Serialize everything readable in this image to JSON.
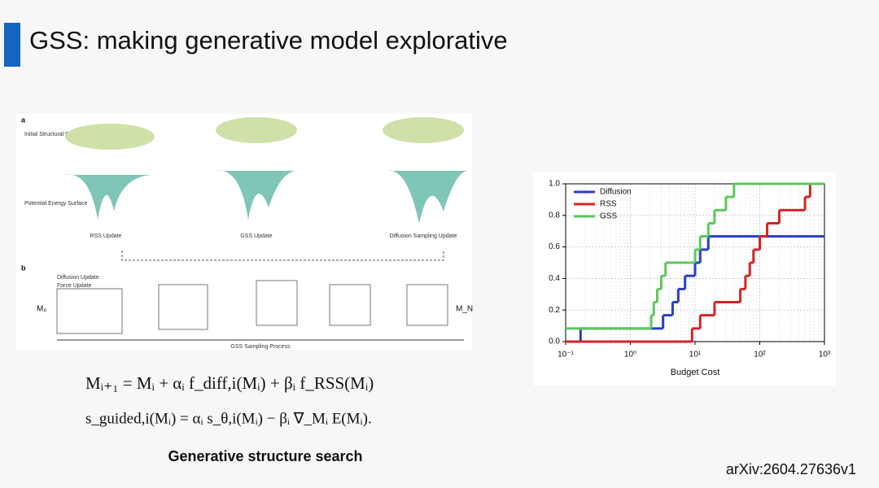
{
  "slide": {
    "title": "GSS: making generative model explorative",
    "caption": "Generative structure search",
    "reference": "arXiv:2604.27636v1",
    "equations": [
      "Mᵢ₊₁ = Mᵢ + αᵢ f_diff,i(Mᵢ) + βᵢ f_RSS(Mᵢ)",
      "s_guided,i(Mᵢ) = αᵢ s_θ,i(Mᵢ) − βᵢ ∇_Mᵢ E(Mᵢ)."
    ],
    "figure": {
      "panel_a": "a",
      "panel_b": "b",
      "initial": "Initial Structural Distribution",
      "surface": "Potential Energy Surface",
      "updates": [
        "RSS Update",
        "GSS Update",
        "Diffusion Sampling Update"
      ],
      "legend": [
        "Diffusion Update",
        "Force Update"
      ],
      "start": "M₀",
      "end": "M_N",
      "process": "GSS Sampling Process"
    }
  },
  "chart_data": {
    "type": "step",
    "xlabel": "Budget Cost",
    "xscale": "log",
    "grid": true,
    "legend": "upper left",
    "xlim": [
      0.1,
      1000
    ],
    "ylim": [
      0,
      1
    ],
    "xticks": [
      {
        "value": 0.1,
        "label": "10⁻¹"
      },
      {
        "value": 1,
        "label": "10⁰"
      },
      {
        "value": 10,
        "label": "10¹"
      },
      {
        "value": 100,
        "label": "10²"
      },
      {
        "value": 1000,
        "label": "10³"
      }
    ],
    "yticks": [
      {
        "value": 0,
        "label": "0.0"
      },
      {
        "value": 0.2,
        "label": "0.2"
      },
      {
        "value": 0.4,
        "label": "0.4"
      },
      {
        "value": 0.6,
        "label": "0.6"
      },
      {
        "value": 0.8,
        "label": "0.8"
      },
      {
        "value": 1,
        "label": "1.0"
      }
    ],
    "series": [
      {
        "name": "Diffusion",
        "color": "#2a3fc4",
        "x": [
          0.1,
          0.17,
          3.2,
          4.5,
          5.5,
          7,
          10,
          12,
          16,
          1000
        ],
        "values": [
          0,
          0.083,
          0.167,
          0.25,
          0.333,
          0.417,
          0.5,
          0.583,
          0.667,
          0.667
        ]
      },
      {
        "name": "RSS",
        "color": "#d42424",
        "x": [
          0.1,
          9,
          12,
          20,
          50,
          60,
          70,
          80,
          100,
          130,
          200,
          500,
          600,
          1000
        ],
        "values": [
          0,
          0.083,
          0.167,
          0.25,
          0.333,
          0.417,
          0.5,
          0.583,
          0.667,
          0.75,
          0.833,
          0.917,
          1,
          1
        ]
      },
      {
        "name": "GSS",
        "color": "#5cc85c",
        "x": [
          0.1,
          2.1,
          2.3,
          2.6,
          3,
          3.5,
          10,
          12,
          16,
          20,
          30,
          40,
          1000
        ],
        "values": [
          0.083,
          0.167,
          0.25,
          0.333,
          0.417,
          0.5,
          0.583,
          0.667,
          0.75,
          0.833,
          0.917,
          1,
          1
        ]
      }
    ]
  }
}
